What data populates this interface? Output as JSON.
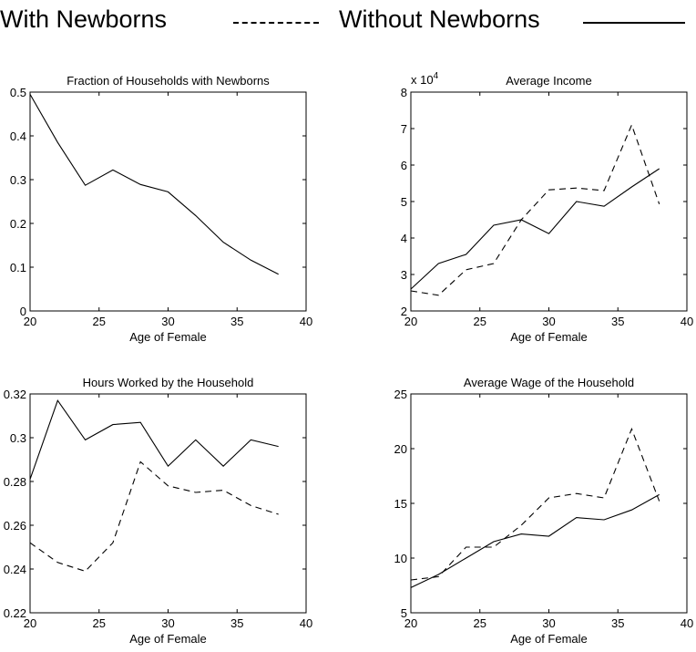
{
  "legend": {
    "with_label": "With Newborns",
    "without_label": "Without Newborns",
    "with_style": "dashed",
    "without_style": "solid"
  },
  "chart_data": [
    {
      "type": "line",
      "title": "Fraction of Households with Newborns",
      "xlabel": "Age of Female",
      "ylabel": "",
      "xlim": [
        20,
        40
      ],
      "ylim": [
        0,
        0.5
      ],
      "xticks": [
        "20",
        "25",
        "30",
        "35",
        "40"
      ],
      "yticks": [
        "0",
        "0.1",
        "0.2",
        "0.3",
        "0.4",
        "0.5"
      ],
      "exponent_label": "",
      "x": [
        20,
        22,
        24,
        26,
        28,
        30,
        32,
        34,
        36,
        38
      ],
      "series": [
        {
          "values": [
            0.495,
            0.385,
            0.287,
            0.322,
            0.289,
            0.272,
            0.218,
            0.157,
            0.116,
            0.084
          ],
          "style": "solid"
        }
      ]
    },
    {
      "type": "line",
      "title": "Average Income",
      "xlabel": "Age of Female",
      "ylabel": "",
      "xlim": [
        20,
        40
      ],
      "ylim": [
        2,
        8
      ],
      "xticks": [
        "20",
        "25",
        "30",
        "35",
        "40"
      ],
      "yticks": [
        "2",
        "3",
        "4",
        "5",
        "6",
        "7",
        "8"
      ],
      "exponent_label": "x 10",
      "exponent_power": "4",
      "x": [
        20,
        22,
        24,
        26,
        28,
        30,
        32,
        34,
        36,
        38
      ],
      "series": [
        {
          "values": [
            2.6,
            3.3,
            3.55,
            4.35,
            4.5,
            4.12,
            5.0,
            4.87,
            5.4,
            5.9
          ],
          "style": "solid"
        },
        {
          "values": [
            2.55,
            2.43,
            3.13,
            3.3,
            4.5,
            5.32,
            5.37,
            5.3,
            7.1,
            4.93
          ],
          "style": "dashed"
        }
      ]
    },
    {
      "type": "line",
      "title": "Hours Worked by the Household",
      "xlabel": "Age of Female",
      "ylabel": "",
      "xlim": [
        20,
        40
      ],
      "ylim": [
        0.22,
        0.32
      ],
      "xticks": [
        "20",
        "25",
        "30",
        "35",
        "40"
      ],
      "yticks": [
        "0.22",
        "0.24",
        "0.26",
        "0.28",
        "0.3",
        "0.32"
      ],
      "exponent_label": "",
      "x": [
        20,
        22,
        24,
        26,
        28,
        30,
        32,
        34,
        36,
        38
      ],
      "series": [
        {
          "values": [
            0.281,
            0.317,
            0.299,
            0.306,
            0.307,
            0.287,
            0.299,
            0.287,
            0.299,
            0.296
          ],
          "style": "solid"
        },
        {
          "values": [
            0.252,
            0.243,
            0.239,
            0.252,
            0.289,
            0.278,
            0.275,
            0.276,
            0.269,
            0.265
          ],
          "style": "dashed"
        }
      ]
    },
    {
      "type": "line",
      "title": "Average Wage of the Household",
      "xlabel": "Age of Female",
      "ylabel": "",
      "xlim": [
        20,
        40
      ],
      "ylim": [
        5,
        25
      ],
      "xticks": [
        "20",
        "25",
        "30",
        "35",
        "40"
      ],
      "yticks": [
        "5",
        "10",
        "15",
        "20",
        "25"
      ],
      "exponent_label": "",
      "x": [
        20,
        22,
        24,
        26,
        28,
        30,
        32,
        34,
        36,
        38
      ],
      "series": [
        {
          "values": [
            7.3,
            8.5,
            10.0,
            11.5,
            12.2,
            12.0,
            13.7,
            13.5,
            14.4,
            15.8
          ],
          "style": "solid"
        },
        {
          "values": [
            8.0,
            8.3,
            11.0,
            11.0,
            13.0,
            15.5,
            15.9,
            15.5,
            21.8,
            15.2
          ],
          "style": "dashed"
        }
      ]
    }
  ]
}
